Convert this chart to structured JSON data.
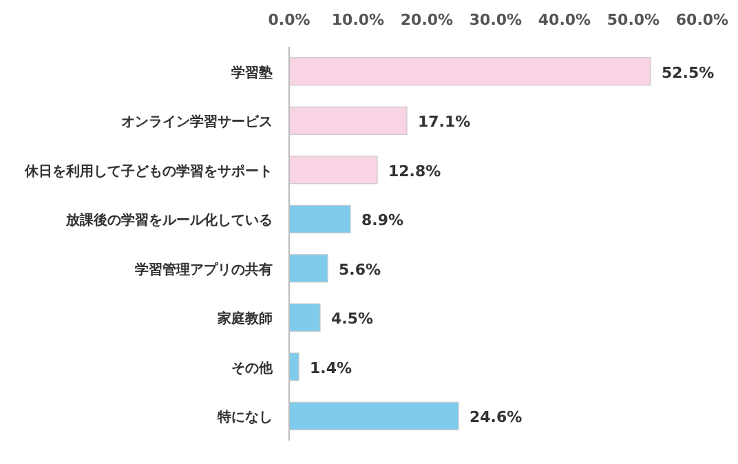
{
  "chart_data": {
    "type": "bar",
    "orientation": "horizontal",
    "categories": [
      "学習塾",
      "オンライン学習サービス",
      "休日を利用して子どもの学習をサポート",
      "放課後の学習をルール化している",
      "学習管理アプリの共有",
      "家庭教師",
      "その他",
      "特になし"
    ],
    "values": [
      52.5,
      17.1,
      12.8,
      8.9,
      5.6,
      4.5,
      1.4,
      24.6
    ],
    "colors": [
      "#f8d4e4",
      "#f8d4e4",
      "#f8d4e4",
      "#7ecbec",
      "#7ecbec",
      "#7ecbec",
      "#7ecbec",
      "#7ecbec"
    ],
    "value_labels": [
      "52.5%",
      "17.1%",
      "12.8%",
      "8.9%",
      "5.6%",
      "4.5%",
      "1.4%",
      "24.6%"
    ],
    "xlim": [
      0,
      60
    ],
    "xticks": [
      {
        "value": 0,
        "label": "0.0%"
      },
      {
        "value": 10,
        "label": "10.0%"
      },
      {
        "value": 20,
        "label": "20.0%"
      },
      {
        "value": 30,
        "label": "30.0%"
      },
      {
        "value": 40,
        "label": "40.0%"
      },
      {
        "value": 50,
        "label": "50.0%"
      },
      {
        "value": 60,
        "label": "60.0%"
      }
    ]
  }
}
